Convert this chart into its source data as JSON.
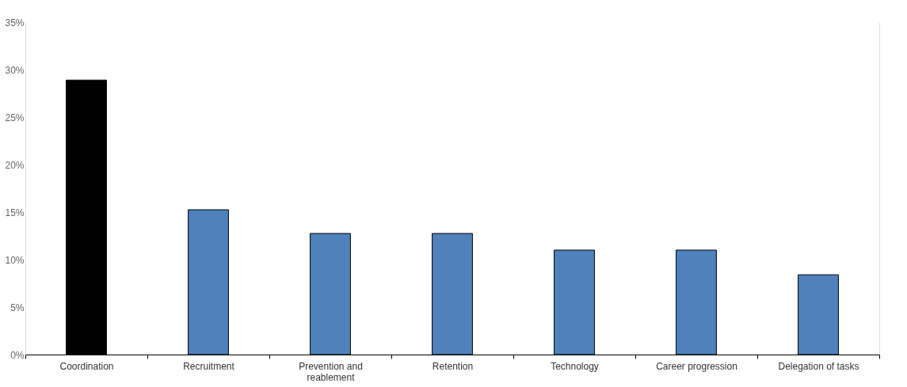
{
  "chart_data": {
    "type": "bar",
    "categories": [
      "Coordination",
      "Recruitment",
      "Prevention and reablement",
      "Retention",
      "Technology",
      "Career progression",
      "Delegation of tasks"
    ],
    "values": [
      28.9,
      15.25,
      12.75,
      12.75,
      11.0,
      11.0,
      8.4
    ],
    "colors": [
      "#000000",
      "#4f81bd",
      "#4f81bd",
      "#4f81bd",
      "#4f81bd",
      "#4f81bd",
      "#4f81bd"
    ],
    "ylim": [
      0,
      35
    ],
    "yticks": [
      {
        "value": 0,
        "label": "0%"
      },
      {
        "value": 5,
        "label": "5%"
      },
      {
        "value": 10,
        "label": "10%"
      },
      {
        "value": 15,
        "label": "15%"
      },
      {
        "value": 20,
        "label": "20%"
      },
      {
        "value": 25,
        "label": "25%"
      },
      {
        "value": 30,
        "label": "30%"
      },
      {
        "value": 35,
        "label": "35%"
      }
    ],
    "grid": "y"
  }
}
